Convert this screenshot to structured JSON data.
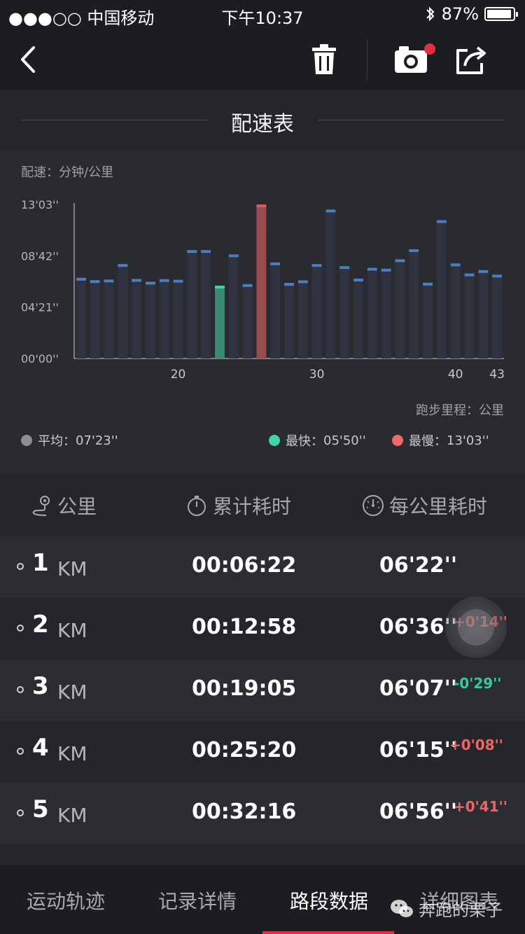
{
  "status_bar": {
    "carrier": "●●●○○ 中国移动",
    "time": "下午10:37",
    "battery": "87%",
    "battery_level": 0.87
  },
  "nav": {
    "back_icon": "chevron-left-icon",
    "delete_icon": "trash-icon",
    "camera_icon": "camera-icon",
    "share_icon": "share-icon"
  },
  "section_title": "配速表",
  "chart_data": {
    "type": "bar",
    "ylabel": "配速：分钟/公里",
    "xlabel": "跑步里程：公里",
    "ytick_labels": [
      "13'03''",
      "08'42''",
      "04'21''",
      "00'00''"
    ],
    "xtick_labels": [
      "20",
      "30",
      "40",
      "43"
    ],
    "x": [
      13,
      14,
      15,
      16,
      17,
      18,
      19,
      20,
      21,
      22,
      23,
      24,
      25,
      26,
      27,
      28,
      29,
      30,
      31,
      32,
      33,
      34,
      35,
      36,
      37,
      38,
      39,
      40,
      41,
      42,
      43
    ],
    "y_seconds": [
      410,
      398,
      401,
      480,
      404,
      390,
      403,
      400,
      551,
      551,
      370,
      529,
      378,
      783,
      488,
      384,
      397,
      480,
      757,
      469,
      406,
      461,
      456,
      504,
      555,
      385,
      703,
      483,
      432,
      449,
      426
    ],
    "fastest_km": 23,
    "slowest_km": 26,
    "colors": {
      "normal": "#2f3340",
      "normal_cap": "#4a7fc1",
      "fastest": "#3c8a74",
      "fastest_cap": "#3fd6a5",
      "slowest": "#9a4b4d",
      "slowest_cap": "#e05a5a"
    }
  },
  "legend": {
    "avg_label": "平均：",
    "avg_value": "07'23''",
    "avg_color": "#8e8f94",
    "fast_label": "最快：",
    "fast_value": "05'50''",
    "fast_color": "#3fd6a5",
    "slow_label": "最慢：",
    "slow_value": "13'03''",
    "slow_color": "#f06a6a"
  },
  "table": {
    "col_km": "公里",
    "col_total": "累计耗时",
    "col_pace": "每公里耗时",
    "rows": [
      {
        "km": "1",
        "unit": "KM",
        "total": "00:06:22",
        "pace": "06'22''",
        "diff": "",
        "trend": "none"
      },
      {
        "km": "2",
        "unit": "KM",
        "total": "00:12:58",
        "pace": "06'36''",
        "diff": "+0'14''",
        "trend": "up"
      },
      {
        "km": "3",
        "unit": "KM",
        "total": "00:19:05",
        "pace": "06'07''",
        "diff": "-0'29''",
        "trend": "down"
      },
      {
        "km": "4",
        "unit": "KM",
        "total": "00:25:20",
        "pace": "06'15''",
        "diff": "+0'08''",
        "trend": "up"
      },
      {
        "km": "5",
        "unit": "KM",
        "total": "00:32:16",
        "pace": "06'56''",
        "diff": "+0'41''",
        "trend": "up"
      }
    ]
  },
  "tabs": [
    "运动轨迹",
    "记录详情",
    "路段数据",
    "详细图表"
  ],
  "active_tab": 2,
  "watermark": "奔跑的栗子"
}
